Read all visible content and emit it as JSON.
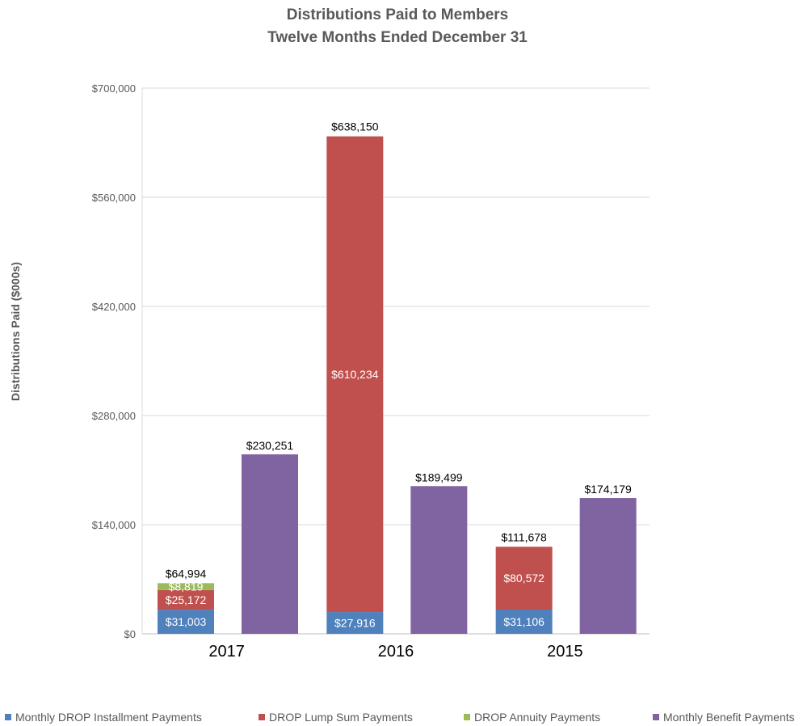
{
  "colors": {
    "monthly_drop": "#4f81bd",
    "drop_lump_sum": "#c0504d",
    "drop_annuity": "#9bbb59",
    "monthly_benefit": "#8064a2",
    "gridline": "#d9d9d9",
    "axis_text": "#595959"
  },
  "chart_data": {
    "type": "bar",
    "stacked": true,
    "title": "Distributions Paid to Members",
    "subtitle": "Twelve Months Ended December 31",
    "xlabel": "",
    "ylabel": "Distributions Paid ($000s)",
    "ylim": [
      0,
      700000
    ],
    "yticks": [
      0,
      140000,
      280000,
      420000,
      560000,
      700000
    ],
    "ytick_labels": [
      "$0",
      "$140,000",
      "$280,000",
      "$420,000",
      "$560,000",
      "$700,000"
    ],
    "categories": [
      "2017",
      "2016",
      "2015"
    ],
    "grid": true,
    "legend_position": "bottom",
    "legend": [
      "Monthly DROP Installment Payments",
      "DROP Lump Sum Payments",
      "DROP Annuity Payments",
      "Monthly Benefit Payments"
    ],
    "groups": [
      {
        "category": "2017",
        "drop_stack": {
          "segments": [
            {
              "series": "Monthly DROP Installment Payments",
              "value": 31003,
              "label": "$31,003"
            },
            {
              "series": "DROP Lump Sum Payments",
              "value": 25172,
              "label": "$25,172"
            },
            {
              "series": "DROP Annuity Payments",
              "value": 8819,
              "label": "$8,819"
            }
          ],
          "total": 64994,
          "total_label": "$64,994"
        },
        "monthly_benefit": {
          "value": 230251,
          "label": "$230,251"
        }
      },
      {
        "category": "2016",
        "drop_stack": {
          "segments": [
            {
              "series": "Monthly DROP Installment Payments",
              "value": 27916,
              "label": "$27,916"
            },
            {
              "series": "DROP Lump Sum Payments",
              "value": 610234,
              "label": "$610,234"
            }
          ],
          "total": 638150,
          "total_label": "$638,150"
        },
        "monthly_benefit": {
          "value": 189499,
          "label": "$189,499"
        }
      },
      {
        "category": "2015",
        "drop_stack": {
          "segments": [
            {
              "series": "Monthly DROP Installment Payments",
              "value": 31106,
              "label": "$31,106"
            },
            {
              "series": "DROP Lump Sum Payments",
              "value": 80572,
              "label": "$80,572"
            }
          ],
          "total": 111678,
          "total_label": "$111,678"
        },
        "monthly_benefit": {
          "value": 174179,
          "label": "$174,179"
        }
      }
    ]
  }
}
